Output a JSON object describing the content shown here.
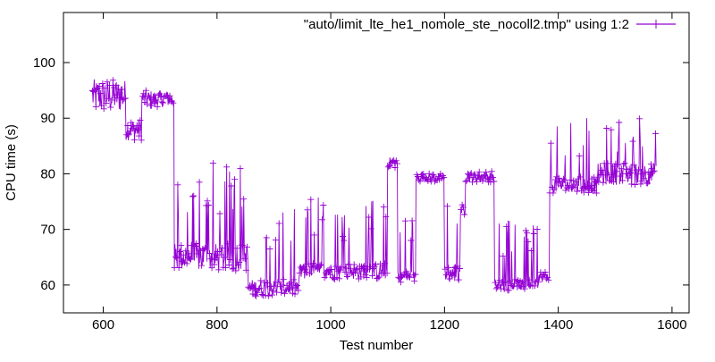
{
  "chart_data": {
    "type": "line",
    "title": "",
    "xlabel": "Test number",
    "ylabel": "CPU time (s)",
    "xlim": [
      530,
      1630
    ],
    "ylim": [
      55,
      109
    ],
    "x_ticks": [
      600,
      800,
      1000,
      1200,
      1400,
      1600
    ],
    "y_ticks": [
      60,
      70,
      80,
      90,
      100
    ],
    "legend_position": "top-right",
    "grid": false,
    "series": [
      {
        "name": "\"auto/limit_lte_he1_nomole_ste_nocoll2.tmp\" using 1:2",
        "color": "#9400d3",
        "marker": "plus",
        "x_start": 581,
        "x_end": 1573,
        "segments": [
          {
            "from": 581,
            "to": 640,
            "base": 94,
            "jitter": 3
          },
          {
            "from": 640,
            "to": 668,
            "base": 88,
            "jitter": 2
          },
          {
            "from": 668,
            "to": 725,
            "base": 93.5,
            "jitter": 1.5
          },
          {
            "from": 725,
            "to": 855,
            "base": 65,
            "jitter": 2.5,
            "spikes": 82
          },
          {
            "from": 855,
            "to": 945,
            "base": 59.5,
            "jitter": 1.5,
            "spikes": 74
          },
          {
            "from": 945,
            "to": 1100,
            "base": 62.5,
            "jitter": 1.5,
            "spikes": 76
          },
          {
            "from": 1100,
            "to": 1118,
            "base": 82,
            "jitter": 1
          },
          {
            "from": 1118,
            "to": 1150,
            "base": 61.5,
            "jitter": 1,
            "spikes": 72
          },
          {
            "from": 1150,
            "to": 1200,
            "base": 79.3,
            "jitter": 0.8
          },
          {
            "from": 1200,
            "to": 1228,
            "base": 62,
            "jitter": 1.5,
            "spikes": 78
          },
          {
            "from": 1228,
            "to": 1237,
            "base": 73.5,
            "jitter": 1
          },
          {
            "from": 1237,
            "to": 1288,
            "base": 79.5,
            "jitter": 1
          },
          {
            "from": 1288,
            "to": 1365,
            "base": 60,
            "jitter": 1,
            "spikes": 72
          },
          {
            "from": 1365,
            "to": 1385,
            "base": 61.5,
            "jitter": 1,
            "spikes": 75
          },
          {
            "from": 1385,
            "to": 1470,
            "base": 78,
            "jitter": 1.5,
            "spikes": 91
          },
          {
            "from": 1470,
            "to": 1573,
            "base": 80,
            "jitter": 2,
            "spikes": 90
          }
        ]
      }
    ]
  }
}
